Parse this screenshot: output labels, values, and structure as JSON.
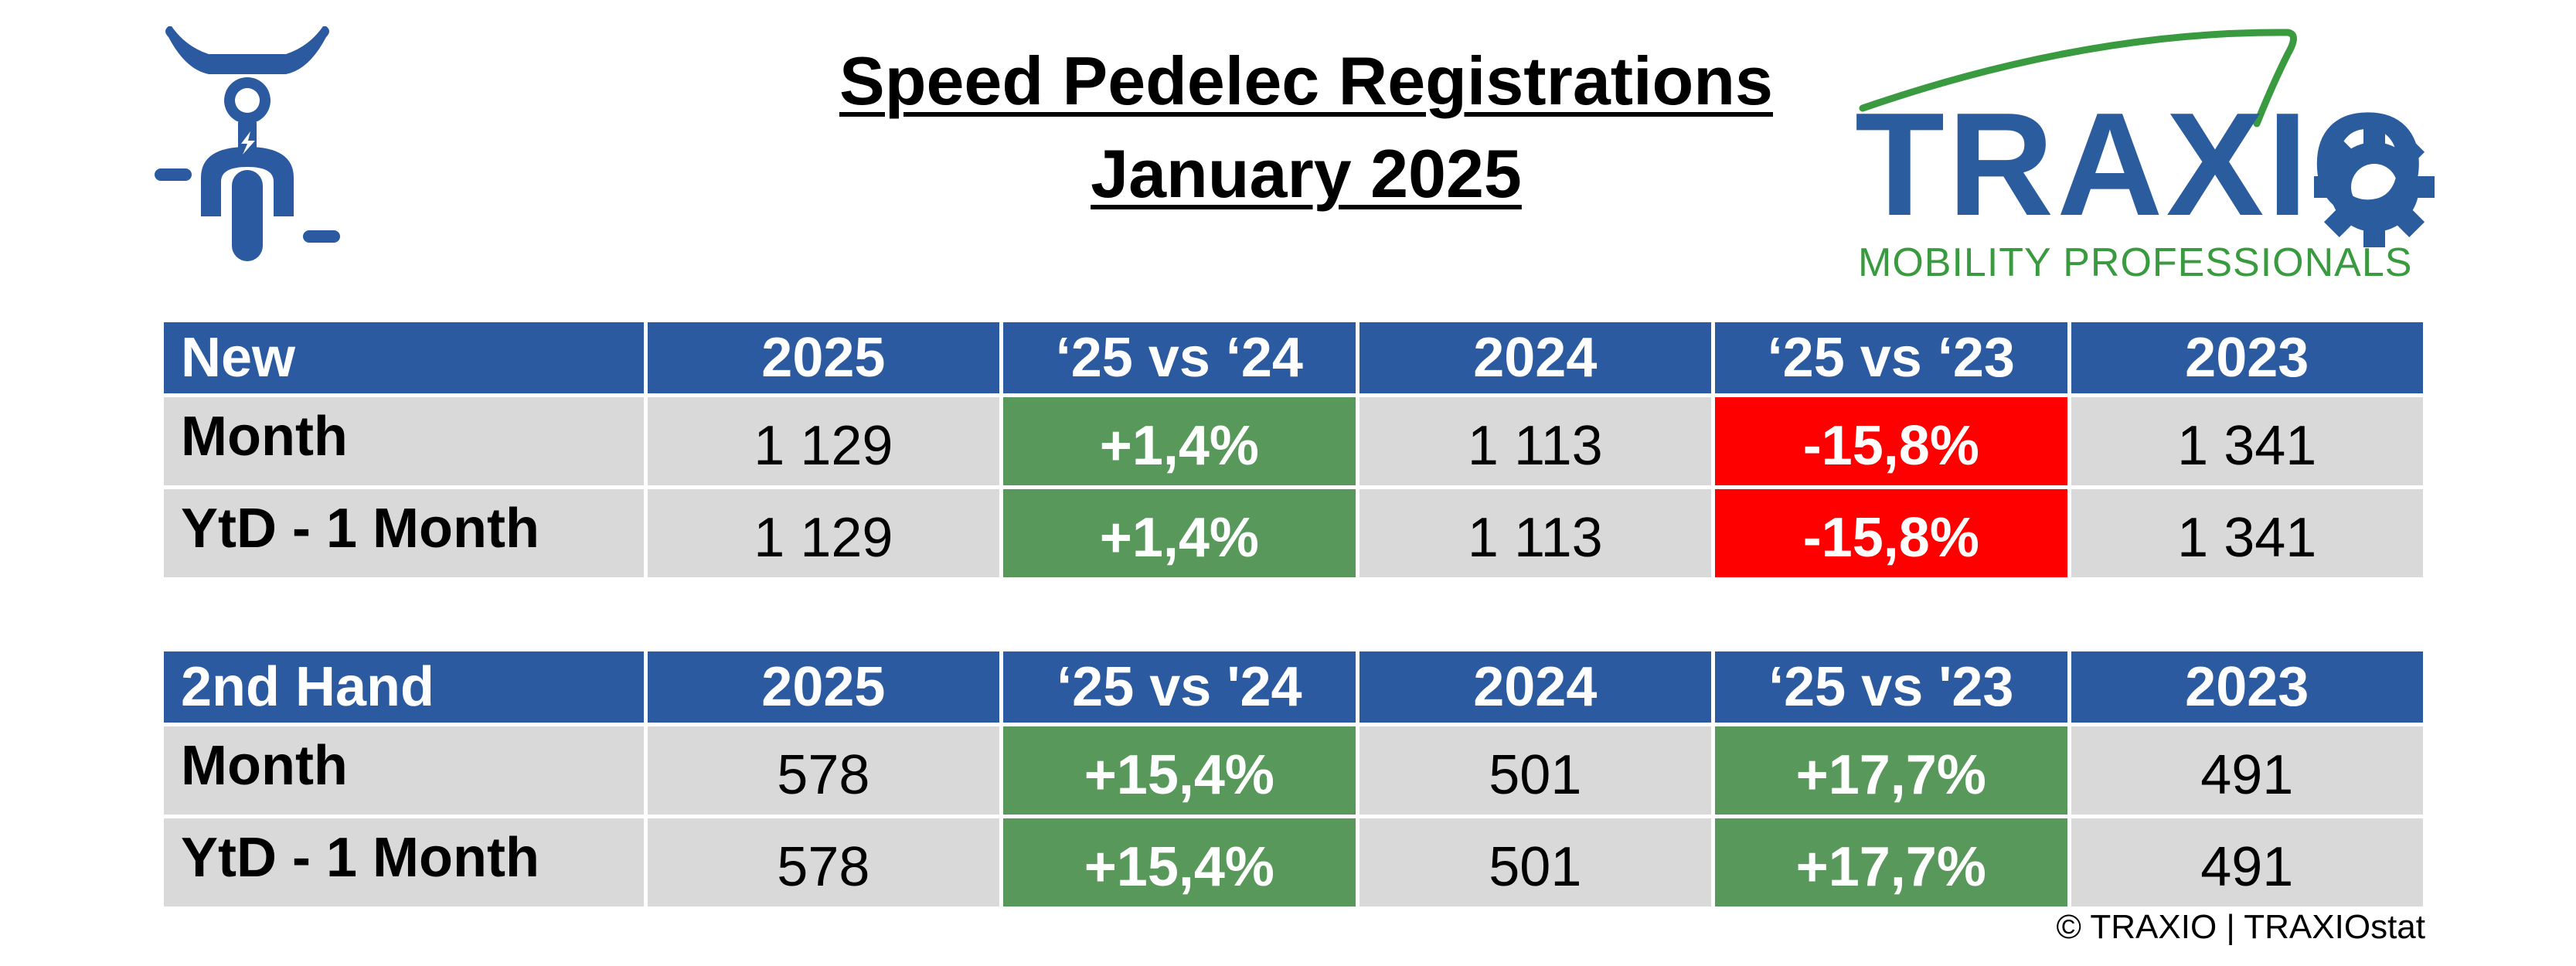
{
  "title": {
    "line1": "Speed Pedelec Registrations",
    "line2": "January 2025"
  },
  "logo": {
    "word": "TRAXIO",
    "tagline": "MOBILITY PROFESSIONALS"
  },
  "icons": {
    "rider": "speed-pedelec-rider-icon",
    "gear": "gear-icon"
  },
  "colors": {
    "header": "#2b5aa0",
    "positive": "#58985a",
    "negative": "#ff0000",
    "cell": "#d9d9d9",
    "logo_blue": "#2a5c9e",
    "logo_green": "#3a9a3f"
  },
  "tables": {
    "new": {
      "headers": [
        "New",
        "2025",
        "‘25 vs ‘24",
        "2024",
        "‘25 vs ‘23",
        "2023"
      ],
      "rows": [
        {
          "label": "Month",
          "v2025": "1 129",
          "vs24": "+1,4%",
          "vs24_status": "positive",
          "v2024": "1 113",
          "vs23": "-15,8%",
          "vs23_status": "negative",
          "v2023": "1 341"
        },
        {
          "label": "YtD - 1 Month",
          "v2025": "1 129",
          "vs24": "+1,4%",
          "vs24_status": "positive",
          "v2024": "1 113",
          "vs23": "-15,8%",
          "vs23_status": "negative",
          "v2023": "1 341"
        }
      ]
    },
    "second_hand": {
      "headers": [
        "2nd Hand",
        "2025",
        "‘25 vs '24",
        "2024",
        "‘25 vs '23",
        "2023"
      ],
      "rows": [
        {
          "label": "Month",
          "v2025": "578",
          "vs24": "+15,4%",
          "vs24_status": "positive",
          "v2024": "501",
          "vs23": "+17,7%",
          "vs23_status": "positive",
          "v2023": "491"
        },
        {
          "label": "YtD - 1 Month",
          "v2025": "578",
          "vs24": "+15,4%",
          "vs24_status": "positive",
          "v2024": "501",
          "vs23": "+17,7%",
          "vs23_status": "positive",
          "v2023": "491"
        }
      ]
    }
  },
  "footer": "© TRAXIO | TRAXIOstat"
}
